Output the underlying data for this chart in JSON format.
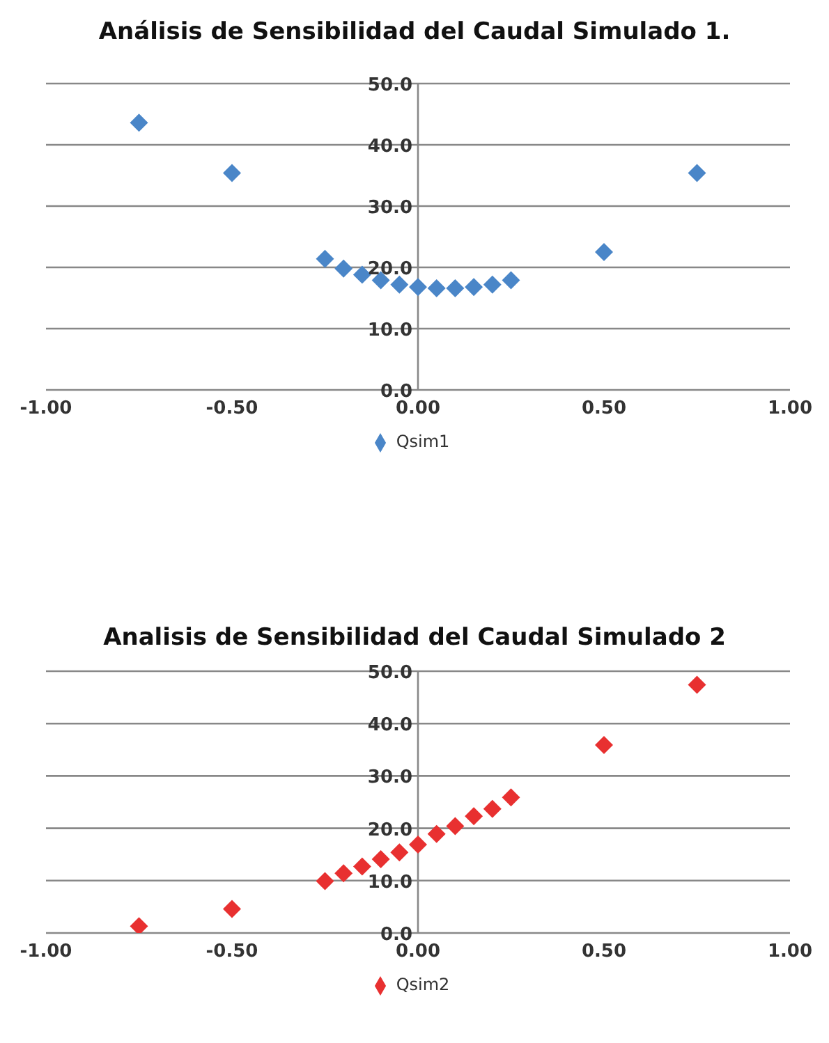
{
  "chart_data": [
    {
      "type": "scatter",
      "title": "Análisis de Sensibilidad del Caudal Simulado 1.",
      "x": [
        -0.75,
        -0.5,
        -0.25,
        -0.2,
        -0.15,
        -0.1,
        -0.05,
        0,
        0.05,
        0.1,
        0.15,
        0.2,
        0.25,
        0.5,
        0.75
      ],
      "series": [
        {
          "name": "Qsim1",
          "color": "#4a86c8",
          "values": [
            43.6,
            35.4,
            21.4,
            19.8,
            18.8,
            17.9,
            17.2,
            16.8,
            16.6,
            16.6,
            16.8,
            17.2,
            17.9,
            22.5,
            35.4
          ]
        }
      ],
      "xlim": [
        -1,
        1
      ],
      "xticks": [
        {
          "value": -1,
          "label": "-1.00"
        },
        {
          "value": -0.5,
          "label": "-0.50"
        },
        {
          "value": 0,
          "label": "0.00"
        },
        {
          "value": 0.5,
          "label": "0.50"
        },
        {
          "value": 1,
          "label": "1.00"
        }
      ],
      "ylim": [
        0,
        50
      ],
      "yticks": [
        {
          "value": 0,
          "label": "0.0"
        },
        {
          "value": 10,
          "label": "10.0"
        },
        {
          "value": 20,
          "label": "20.0"
        },
        {
          "value": 30,
          "label": "30.0"
        },
        {
          "value": 40,
          "label": "40.0"
        },
        {
          "value": 50,
          "label": "50.0"
        }
      ],
      "grid": "y",
      "legend": "bottom",
      "marker": "diamond"
    },
    {
      "type": "scatter",
      "title": "Analisis de Sensibilidad del Caudal Simulado 2",
      "x": [
        -0.75,
        -0.5,
        -0.25,
        -0.2,
        -0.15,
        -0.1,
        -0.05,
        0,
        0.05,
        0.1,
        0.15,
        0.2,
        0.25,
        0.5,
        0.75
      ],
      "series": [
        {
          "name": "Qsim2",
          "color": "#e83030",
          "values": [
            1.3,
            4.6,
            9.9,
            11.4,
            12.7,
            14.1,
            15.4,
            16.9,
            18.9,
            20.4,
            22.3,
            23.7,
            25.9,
            35.9,
            47.4
          ]
        }
      ],
      "xlim": [
        -1,
        1
      ],
      "xticks": [
        {
          "value": -1,
          "label": "-1.00"
        },
        {
          "value": -0.5,
          "label": "-0.50"
        },
        {
          "value": 0,
          "label": "0.00"
        },
        {
          "value": 0.5,
          "label": "0.50"
        },
        {
          "value": 1,
          "label": "1.00"
        }
      ],
      "ylim": [
        0,
        50
      ],
      "yticks": [
        {
          "value": 0,
          "label": "0.0"
        },
        {
          "value": 10,
          "label": "10.0"
        },
        {
          "value": 20,
          "label": "20.0"
        },
        {
          "value": 30,
          "label": "30.0"
        },
        {
          "value": 40,
          "label": "40.0"
        },
        {
          "value": 50,
          "label": "50.0"
        }
      ],
      "grid": "y",
      "legend": "bottom",
      "marker": "diamond"
    }
  ]
}
